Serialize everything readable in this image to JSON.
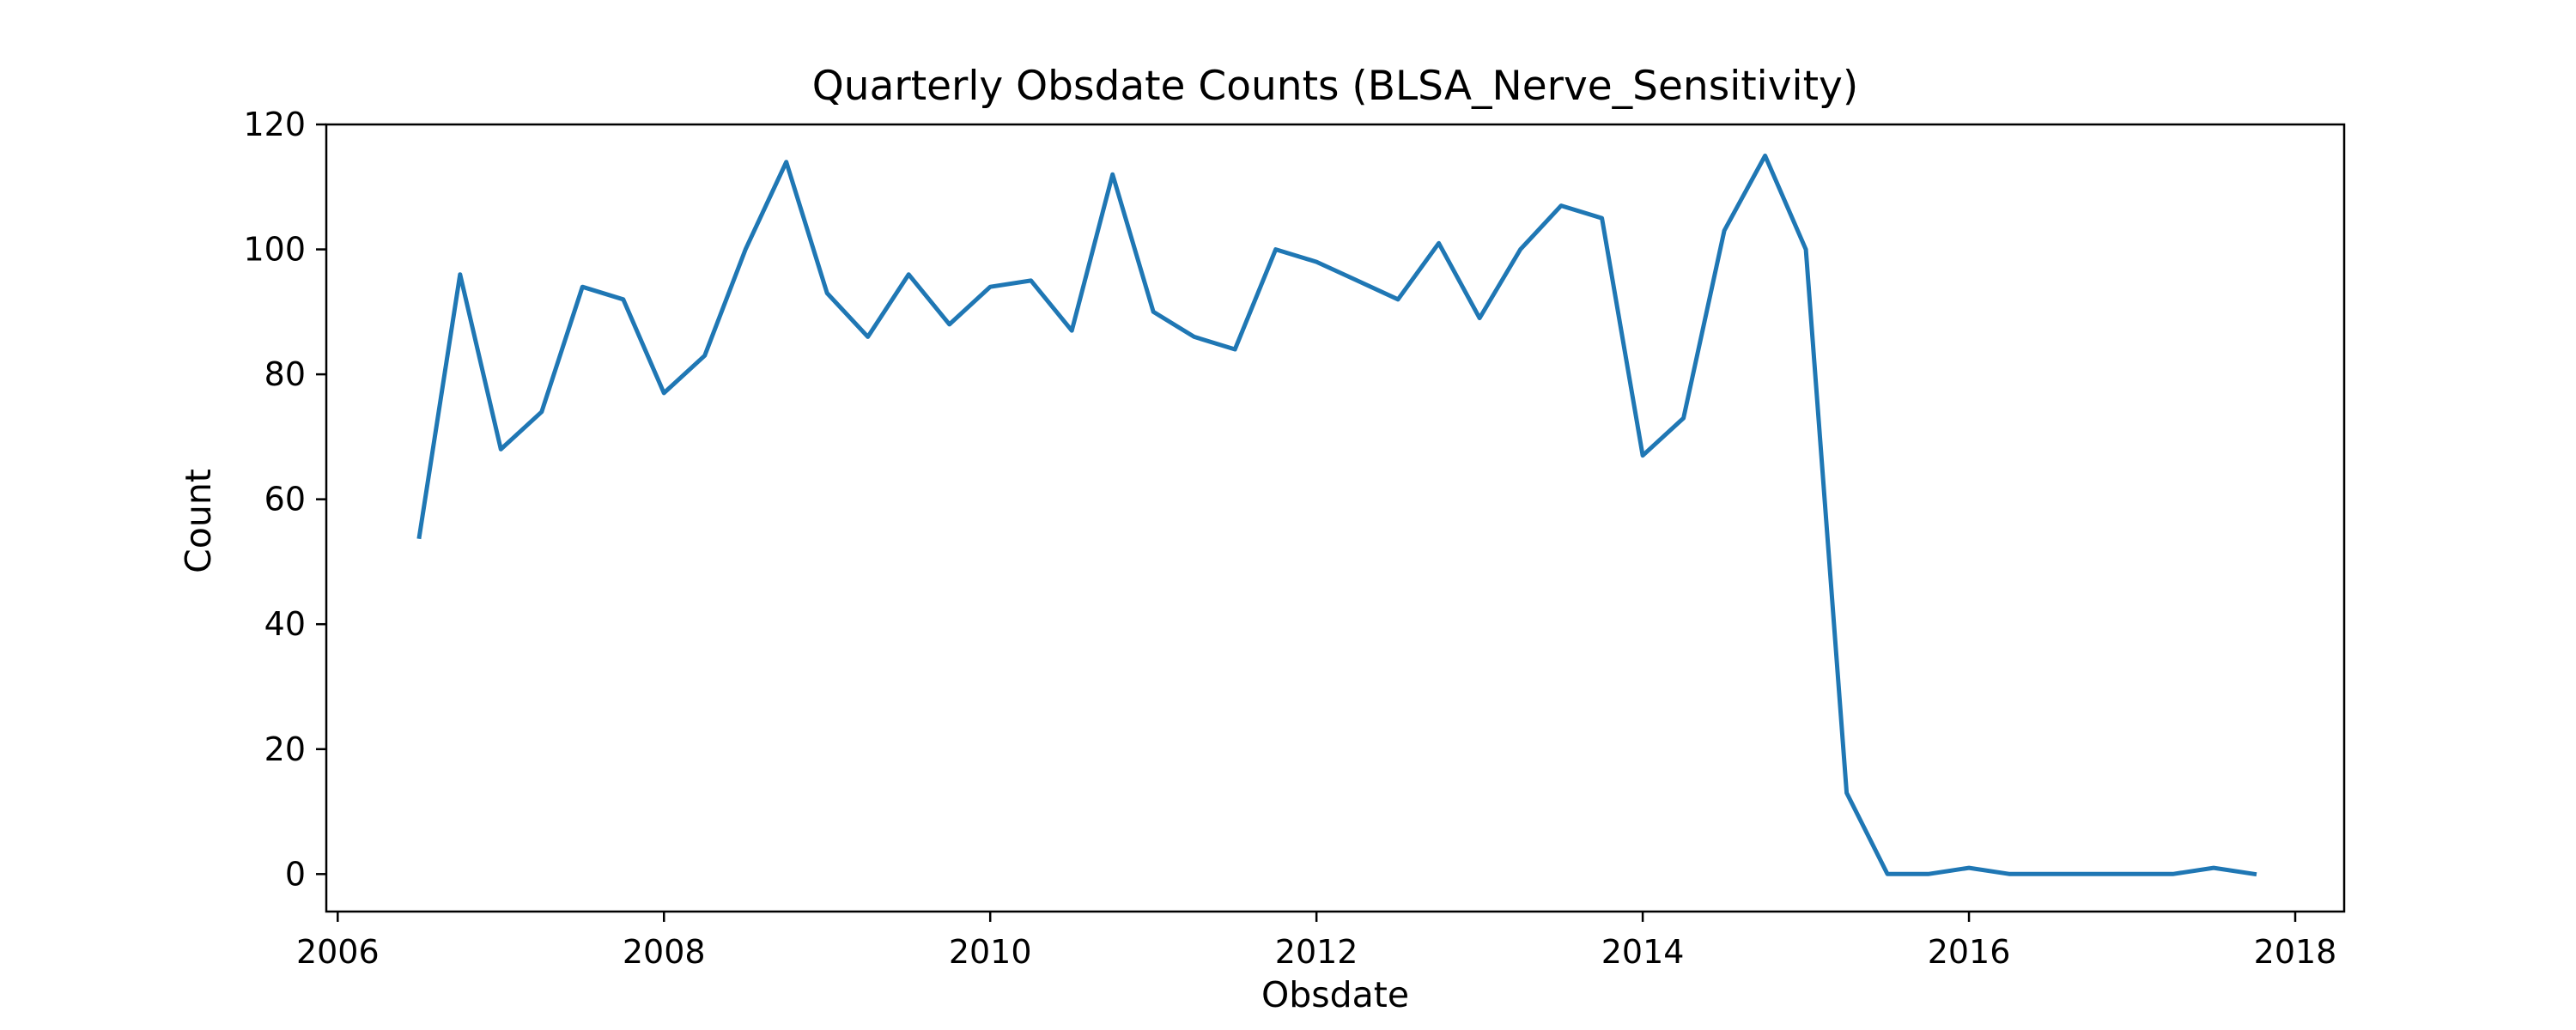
{
  "chart_data": {
    "type": "line",
    "title": "Quarterly Obsdate Counts (BLSA_Nerve_Sensitivity)",
    "xlabel": "Obsdate",
    "ylabel": "Count",
    "xlim": [
      2005.93,
      2018.3
    ],
    "ylim": [
      -6,
      120
    ],
    "xticks": [
      2006,
      2008,
      2010,
      2012,
      2014,
      2016,
      2018
    ],
    "xtick_labels": [
      "2006",
      "2008",
      "2010",
      "2012",
      "2014",
      "2016",
      "2018"
    ],
    "yticks": [
      0,
      20,
      40,
      60,
      80,
      100,
      120
    ],
    "ytick_labels": [
      "0",
      "20",
      "40",
      "60",
      "80",
      "100",
      "120"
    ],
    "grid": false,
    "series": [
      {
        "name": "Count",
        "color": "#1f77b4",
        "x": [
          2006.5,
          2006.75,
          2007.0,
          2007.25,
          2007.5,
          2007.75,
          2008.0,
          2008.25,
          2008.5,
          2008.75,
          2009.0,
          2009.25,
          2009.5,
          2009.75,
          2010.0,
          2010.25,
          2010.5,
          2010.75,
          2011.0,
          2011.25,
          2011.5,
          2011.75,
          2012.0,
          2012.25,
          2012.5,
          2012.75,
          2013.0,
          2013.25,
          2013.5,
          2013.75,
          2014.0,
          2014.25,
          2014.5,
          2014.75,
          2015.0,
          2015.25,
          2015.5,
          2015.75,
          2016.0,
          2016.25,
          2016.5,
          2016.75,
          2017.0,
          2017.25,
          2017.5,
          2017.75
        ],
        "values": [
          54,
          96,
          68,
          74,
          94,
          92,
          77,
          83,
          100,
          114,
          93,
          86,
          96,
          88,
          94,
          95,
          87,
          112,
          90,
          86,
          84,
          100,
          98,
          95,
          92,
          101,
          89,
          100,
          107,
          105,
          67,
          73,
          103,
          115,
          100,
          13,
          0,
          0,
          1,
          0,
          0,
          0,
          0,
          0,
          1,
          0
        ]
      }
    ]
  }
}
